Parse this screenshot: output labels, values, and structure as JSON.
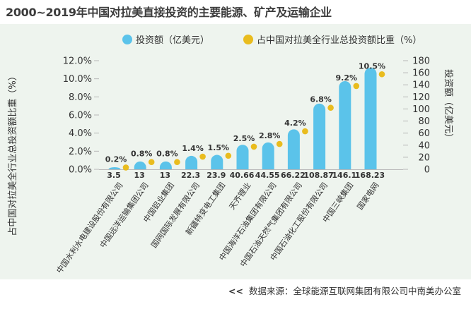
{
  "title": "2000~2019年中国对拉美直接投资的主要能源、矿产及运输企业",
  "source": {
    "prefix": "<<",
    "text": "数据来源：全球能源互联网集团有限公司中南美办公室"
  },
  "colors": {
    "bar": "#5bc3ea",
    "dot": "#e9bc1e",
    "panel": "#eef4ee",
    "text": "#333333"
  },
  "chart_data": {
    "type": "bar",
    "title": "2000~2019年中国对拉美直接投资的主要能源、矿产及运输企业",
    "legend": [
      "投资额（亿美元）",
      "占中国对拉美全行业总投资额比重（%）"
    ],
    "legend_position": "top-right",
    "left_axis_label": "占中国对拉美全行业总投资额比重（%）",
    "right_axis_label": "投资额（亿美元）",
    "left_ticks": [
      "0.0%",
      "2.0%",
      "4.0%",
      "6.0%",
      "8.0%",
      "10.0%",
      "12.0%"
    ],
    "right_ticks": [
      "0",
      "20",
      "40",
      "60",
      "80",
      "100",
      "120",
      "140",
      "160",
      "180"
    ],
    "left_ylim": [
      0,
      12
    ],
    "right_ylim": [
      0,
      180
    ],
    "categories": [
      "中国水利水电建设股份有限公司",
      "中国远洋运输集团公司",
      "中国铝业集团",
      "国网国际发展有限公司",
      "新疆特变电工集团",
      "天齐锂业",
      "中国海洋石油集团有限公司",
      "中国石油天然气集团有限公司",
      "中国石油化工股份有限公司",
      "中国三峡集团",
      "国家电网"
    ],
    "series": [
      {
        "name": "投资额（亿美元）",
        "axis": "right",
        "values": [
          3.5,
          13,
          13,
          22.3,
          23.9,
          40.66,
          44.55,
          66.22,
          108.87,
          146.1,
          168.23
        ],
        "labels": [
          "3.5",
          "13",
          "13",
          "22.3",
          "23.9",
          "40.66",
          "44.55",
          "66.22",
          "108.87",
          "146.1",
          "168.23"
        ]
      },
      {
        "name": "占中国对拉美全行业总投资额比重（%）",
        "axis": "left",
        "values": [
          0.2,
          0.8,
          0.8,
          1.4,
          1.5,
          2.5,
          2.8,
          4.2,
          6.8,
          9.2,
          10.5
        ],
        "labels": [
          "0.2%",
          "0.8%",
          "0.8%",
          "1.4%",
          "1.5%",
          "2.5%",
          "2.8%",
          "4.2%",
          "6.8%",
          "9.2%",
          "10.5%"
        ]
      }
    ]
  }
}
